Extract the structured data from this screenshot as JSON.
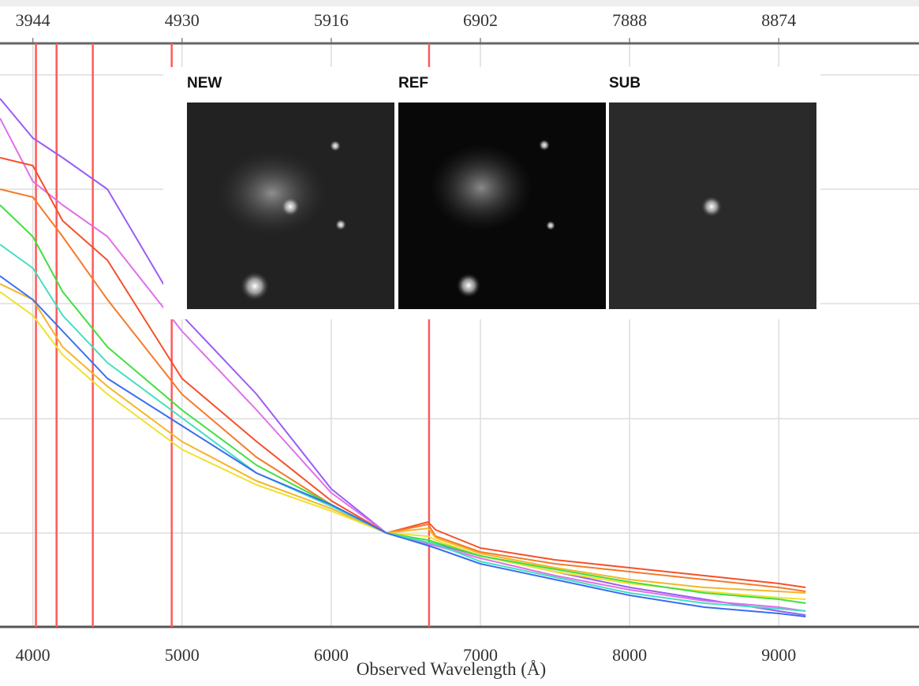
{
  "chart_data": {
    "type": "line",
    "xlabel": "Observed Wavelength (Å)",
    "x": [
      3780,
      4000,
      4200,
      4500,
      5000,
      5500,
      6000,
      6370,
      6650,
      6700,
      7000,
      7500,
      8000,
      8500,
      9000,
      9180
    ],
    "xlim": [
      3780,
      9940
    ],
    "xticks": [
      4000,
      5000,
      6000,
      7000,
      8000,
      9000
    ],
    "x2lim": [
      3727,
      9801
    ],
    "x2ticks": [
      3944,
      4930,
      5916,
      6902,
      7888,
      8874
    ],
    "ylim": [
      0,
      740
    ],
    "ygrid": [
      119,
      264,
      410,
      555,
      700
    ],
    "vlines": {
      "color": "#ff5a5a",
      "x": [
        4021,
        4159,
        4402,
        4931,
        6656
      ]
    },
    "series": [
      {
        "color": "#9b5cf5",
        "values": [
          670,
          620,
          595,
          555,
          395,
          295,
          175,
          119,
          107,
          105,
          90,
          70,
          50,
          35,
          20,
          15
        ]
      },
      {
        "color": "#e070e8",
        "values": [
          645,
          565,
          535,
          495,
          375,
          275,
          170,
          119,
          105,
          103,
          87,
          65,
          47,
          33,
          25,
          20
        ]
      },
      {
        "color": "#f5502a",
        "values": [
          595,
          585,
          515,
          465,
          315,
          235,
          160,
          119,
          133,
          123,
          100,
          85,
          75,
          65,
          55,
          50
        ]
      },
      {
        "color": "#f57a2a",
        "values": [
          555,
          545,
          495,
          415,
          295,
          215,
          155,
          119,
          130,
          115,
          95,
          80,
          70,
          60,
          50,
          45
        ]
      },
      {
        "color": "#f5b52a",
        "values": [
          435,
          415,
          355,
          305,
          235,
          185,
          150,
          119,
          125,
          113,
          93,
          75,
          60,
          50,
          45,
          43
        ]
      },
      {
        "color": "#f0e030",
        "values": [
          425,
          395,
          345,
          295,
          225,
          180,
          147,
          119,
          115,
          110,
          90,
          70,
          55,
          45,
          37,
          35
        ]
      },
      {
        "color": "#40e040",
        "values": [
          535,
          495,
          425,
          355,
          275,
          205,
          155,
          119,
          110,
          107,
          90,
          73,
          57,
          43,
          35,
          30
        ]
      },
      {
        "color": "#40e0c0",
        "values": [
          485,
          455,
          395,
          335,
          265,
          195,
          153,
          119,
          107,
          105,
          83,
          63,
          43,
          30,
          23,
          20
        ]
      },
      {
        "color": "#3a6ef0",
        "values": [
          445,
          415,
          375,
          315,
          255,
          195,
          155,
          119,
          103,
          100,
          80,
          60,
          40,
          25,
          17,
          13
        ]
      }
    ],
    "inset": {
      "panels": [
        "NEW",
        "REF",
        "SUB"
      ]
    }
  }
}
